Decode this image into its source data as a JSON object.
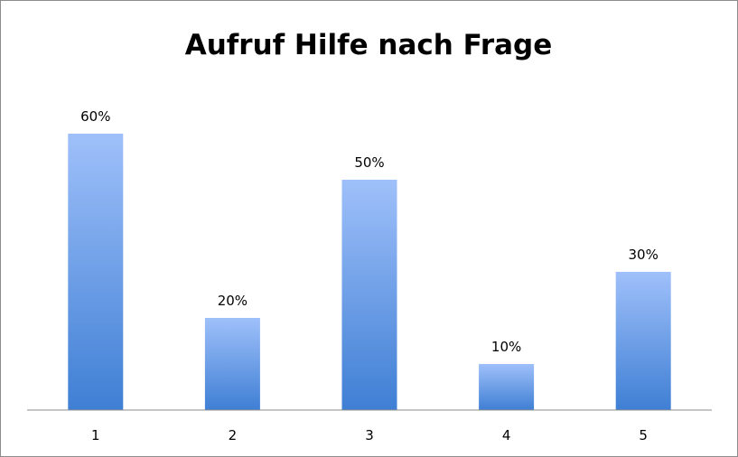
{
  "chart_data": {
    "type": "bar",
    "title": "Aufruf Hilfe nach Frage",
    "xlabel": "",
    "ylabel": "",
    "categories": [
      "1",
      "2",
      "3",
      "4",
      "5"
    ],
    "values": [
      60,
      20,
      50,
      10,
      30
    ],
    "data_labels": [
      "60%",
      "20%",
      "50%",
      "10%",
      "30%"
    ],
    "unit": "%",
    "ylim": [
      0,
      60
    ],
    "grid": false,
    "legend": "none",
    "colors": {
      "bar_top": "#9fc0fa",
      "bar_bottom": "#3f7fd4",
      "axis": "#8c8c8c",
      "frame": "#8c8c8c"
    }
  }
}
